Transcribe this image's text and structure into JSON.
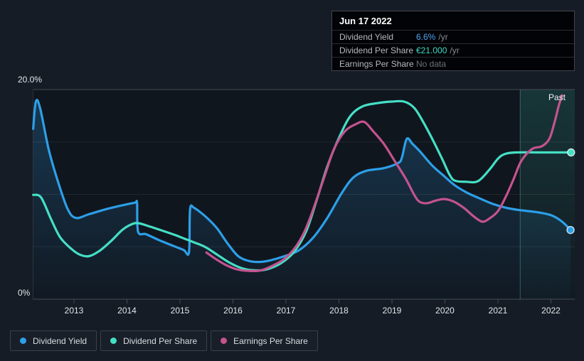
{
  "past_label": "Past",
  "tooltip": {
    "date": "Jun 17 2022",
    "rows": [
      {
        "label": "Dividend Yield",
        "value": "6.6%",
        "suffix": "/yr",
        "value_color": "#4da3f2"
      },
      {
        "label": "Dividend Per Share",
        "value": "€21.000",
        "suffix": "/yr",
        "value_color": "#40d9c2"
      },
      {
        "label": "Earnings Per Share",
        "value": "No data",
        "suffix": "",
        "value_color": "#6c727a"
      }
    ]
  },
  "legend": [
    {
      "label": "Dividend Yield",
      "color": "#2d9fe8"
    },
    {
      "label": "Dividend Per Share",
      "color": "#45dfc5"
    },
    {
      "label": "Earnings Per Share",
      "color": "#c4538f"
    }
  ],
  "chart_data": {
    "type": "line",
    "title": "Dividend history (yield %, per-share, EPS) 2012-2022",
    "x_ticks": [
      2013,
      2014,
      2015,
      2016,
      2017,
      2018,
      2019,
      2020,
      2021,
      2022
    ],
    "x_range": [
      2012.23,
      2022.45
    ],
    "y_axis": {
      "min": 0,
      "max": 20,
      "top_label": "20.0%",
      "bottom_label": "0%",
      "gridline_step": 5
    },
    "past_start_x": 2021.42,
    "legend_position": "bottom-left",
    "series": [
      {
        "name": "Dividend Yield",
        "color": "#2d9fe8",
        "area": true,
        "end_dot": true,
        "points": [
          [
            2012.23,
            16.25
          ],
          [
            2012.28,
            18.85
          ],
          [
            2012.36,
            18.25
          ],
          [
            2012.52,
            14.35
          ],
          [
            2012.68,
            11.5
          ],
          [
            2012.88,
            8.6
          ],
          [
            2013.04,
            7.75
          ],
          [
            2013.28,
            8.1
          ],
          [
            2013.62,
            8.6
          ],
          [
            2013.95,
            9.0
          ],
          [
            2014.15,
            9.2
          ],
          [
            2014.19,
            9.15
          ],
          [
            2014.21,
            6.45
          ],
          [
            2014.36,
            6.2
          ],
          [
            2014.62,
            5.6
          ],
          [
            2014.89,
            5.05
          ],
          [
            2015.07,
            4.7
          ],
          [
            2015.17,
            4.5
          ],
          [
            2015.19,
            8.55
          ],
          [
            2015.27,
            8.7
          ],
          [
            2015.5,
            7.8
          ],
          [
            2015.7,
            6.75
          ],
          [
            2015.9,
            5.3
          ],
          [
            2016.1,
            4.1
          ],
          [
            2016.3,
            3.65
          ],
          [
            2016.5,
            3.55
          ],
          [
            2016.7,
            3.7
          ],
          [
            2016.97,
            4.1
          ],
          [
            2017.24,
            4.65
          ],
          [
            2017.51,
            5.85
          ],
          [
            2017.78,
            7.75
          ],
          [
            2018.05,
            10.1
          ],
          [
            2018.27,
            11.6
          ],
          [
            2018.52,
            12.25
          ],
          [
            2018.85,
            12.5
          ],
          [
            2019.12,
            13.0
          ],
          [
            2019.19,
            13.55
          ],
          [
            2019.28,
            15.3
          ],
          [
            2019.39,
            14.8
          ],
          [
            2019.52,
            14.15
          ],
          [
            2019.75,
            12.8
          ],
          [
            2019.97,
            11.8
          ],
          [
            2020.19,
            10.85
          ],
          [
            2020.42,
            10.15
          ],
          [
            2020.64,
            9.65
          ],
          [
            2020.87,
            9.15
          ],
          [
            2021.13,
            8.75
          ],
          [
            2021.4,
            8.5
          ],
          [
            2021.74,
            8.3
          ],
          [
            2022.01,
            8.0
          ],
          [
            2022.21,
            7.4
          ],
          [
            2022.37,
            6.6
          ]
        ]
      },
      {
        "name": "Dividend Per Share",
        "color": "#45dfc5",
        "area": false,
        "end_dot": true,
        "points": [
          [
            2012.23,
            9.95
          ],
          [
            2012.38,
            9.7
          ],
          [
            2012.57,
            7.6
          ],
          [
            2012.74,
            5.9
          ],
          [
            2012.95,
            4.8
          ],
          [
            2013.11,
            4.25
          ],
          [
            2013.28,
            4.1
          ],
          [
            2013.48,
            4.6
          ],
          [
            2013.71,
            5.6
          ],
          [
            2013.91,
            6.6
          ],
          [
            2014.09,
            7.15
          ],
          [
            2014.22,
            7.25
          ],
          [
            2014.42,
            6.95
          ],
          [
            2014.66,
            6.55
          ],
          [
            2014.89,
            6.15
          ],
          [
            2015.07,
            5.8
          ],
          [
            2015.25,
            5.45
          ],
          [
            2015.47,
            5.0
          ],
          [
            2015.7,
            4.25
          ],
          [
            2015.93,
            3.5
          ],
          [
            2016.17,
            2.95
          ],
          [
            2016.41,
            2.75
          ],
          [
            2016.64,
            2.85
          ],
          [
            2016.91,
            3.45
          ],
          [
            2017.15,
            4.5
          ],
          [
            2017.38,
            6.45
          ],
          [
            2017.58,
            9.45
          ],
          [
            2017.78,
            12.65
          ],
          [
            2018.01,
            15.5
          ],
          [
            2018.22,
            17.5
          ],
          [
            2018.45,
            18.4
          ],
          [
            2018.72,
            18.7
          ],
          [
            2018.99,
            18.85
          ],
          [
            2019.23,
            18.85
          ],
          [
            2019.42,
            18.25
          ],
          [
            2019.59,
            16.9
          ],
          [
            2019.79,
            15.0
          ],
          [
            2019.95,
            13.35
          ],
          [
            2020.09,
            11.85
          ],
          [
            2020.19,
            11.3
          ],
          [
            2020.4,
            11.2
          ],
          [
            2020.62,
            11.25
          ],
          [
            2020.83,
            12.3
          ],
          [
            2021.0,
            13.4
          ],
          [
            2021.13,
            13.85
          ],
          [
            2021.34,
            14.0
          ],
          [
            2021.81,
            14.0
          ],
          [
            2022.38,
            14.0
          ]
        ]
      },
      {
        "name": "Earnings Per Share",
        "color": "#c4538f",
        "area": false,
        "end_dot": false,
        "points": [
          [
            2015.5,
            4.45
          ],
          [
            2015.67,
            3.85
          ],
          [
            2015.87,
            3.25
          ],
          [
            2016.07,
            2.85
          ],
          [
            2016.3,
            2.7
          ],
          [
            2016.53,
            2.75
          ],
          [
            2016.77,
            3.25
          ],
          [
            2016.97,
            3.85
          ],
          [
            2017.17,
            4.9
          ],
          [
            2017.35,
            6.45
          ],
          [
            2017.51,
            8.5
          ],
          [
            2017.71,
            11.45
          ],
          [
            2017.91,
            14.35
          ],
          [
            2018.11,
            16.0
          ],
          [
            2018.32,
            16.7
          ],
          [
            2018.48,
            16.9
          ],
          [
            2018.65,
            16.0
          ],
          [
            2018.85,
            14.8
          ],
          [
            2019.05,
            13.2
          ],
          [
            2019.26,
            11.5
          ],
          [
            2019.42,
            9.95
          ],
          [
            2019.52,
            9.3
          ],
          [
            2019.66,
            9.15
          ],
          [
            2019.82,
            9.4
          ],
          [
            2019.99,
            9.55
          ],
          [
            2020.17,
            9.3
          ],
          [
            2020.36,
            8.7
          ],
          [
            2020.53,
            7.95
          ],
          [
            2020.7,
            7.4
          ],
          [
            2020.84,
            7.7
          ],
          [
            2021.0,
            8.4
          ],
          [
            2021.16,
            9.9
          ],
          [
            2021.3,
            11.5
          ],
          [
            2021.42,
            13.0
          ],
          [
            2021.54,
            13.85
          ],
          [
            2021.67,
            14.4
          ],
          [
            2021.83,
            14.6
          ],
          [
            2021.97,
            15.3
          ],
          [
            2022.07,
            16.9
          ],
          [
            2022.15,
            18.5
          ],
          [
            2022.21,
            19.45
          ]
        ]
      }
    ]
  }
}
